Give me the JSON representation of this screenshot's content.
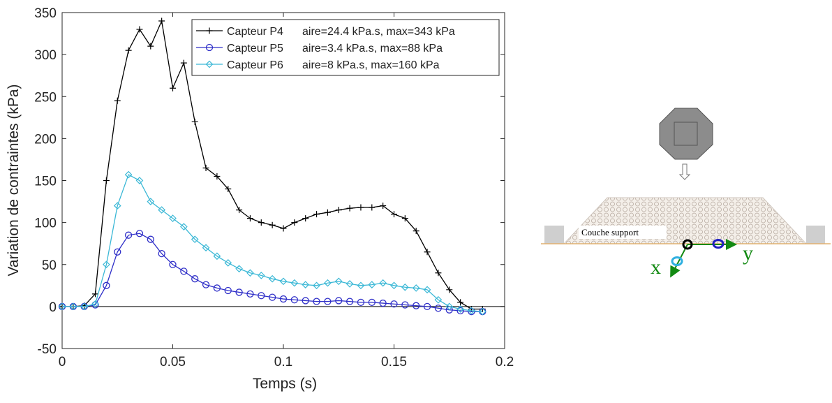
{
  "chart_data": {
    "type": "line",
    "x_label": "Temps (s)",
    "y_label": "Variation de contraintes (kPa)",
    "x": [
      0,
      0.005,
      0.01,
      0.015,
      0.02,
      0.025,
      0.03,
      0.035,
      0.04,
      0.045,
      0.05,
      0.055,
      0.06,
      0.065,
      0.07,
      0.075,
      0.08,
      0.085,
      0.09,
      0.095,
      0.1,
      0.105,
      0.11,
      0.115,
      0.12,
      0.125,
      0.13,
      0.135,
      0.14,
      0.145,
      0.15,
      0.155,
      0.16,
      0.165,
      0.17,
      0.175,
      0.18,
      0.185,
      0.19
    ],
    "series": [
      {
        "name": "Capteur P4",
        "stats": "aire=24.4 kPa.s, max=343 kPa",
        "color": "#000000",
        "marker": "plus",
        "values": [
          0,
          0,
          1,
          15,
          150,
          245,
          305,
          330,
          310,
          340,
          260,
          290,
          220,
          165,
          155,
          140,
          115,
          105,
          100,
          97,
          93,
          100,
          105,
          110,
          112,
          115,
          117,
          118,
          118,
          120,
          110,
          105,
          90,
          65,
          40,
          20,
          5,
          -3,
          -3
        ]
      },
      {
        "name": "Capteur P5",
        "stats": "aire=3.4 kPa.s, max=88 kPa",
        "color": "#2f2fc8",
        "marker": "circle",
        "values": [
          0,
          0,
          0,
          2,
          25,
          65,
          85,
          87,
          80,
          63,
          50,
          42,
          33,
          26,
          22,
          19,
          17,
          15,
          13,
          11,
          9,
          8,
          7,
          6,
          6,
          7,
          6,
          5,
          5,
          4,
          3,
          2,
          1,
          0,
          -2,
          -4,
          -5,
          -6,
          -6
        ]
      },
      {
        "name": "Capteur P6",
        "stats": "aire=8 kPa.s, max=160 kPa",
        "color": "#3bb8d6",
        "marker": "diamond",
        "values": [
          0,
          0,
          0,
          3,
          50,
          120,
          157,
          150,
          125,
          115,
          105,
          95,
          80,
          70,
          60,
          52,
          45,
          40,
          37,
          33,
          30,
          28,
          26,
          25,
          28,
          30,
          27,
          25,
          26,
          28,
          25,
          23,
          22,
          20,
          8,
          0,
          -3,
          -5,
          -6
        ]
      }
    ],
    "xlim": [
      0,
      0.2
    ],
    "xticks": [
      0,
      0.05,
      0.1,
      0.15,
      0.2
    ],
    "ylim": [
      -50,
      350
    ],
    "yticks": [
      -50,
      0,
      50,
      100,
      150,
      200,
      250,
      300,
      350
    ],
    "zero_line": true,
    "legend": "upper right"
  },
  "diagram": {
    "label": "Couche support",
    "axis_x": "x",
    "axis_y": "y"
  }
}
